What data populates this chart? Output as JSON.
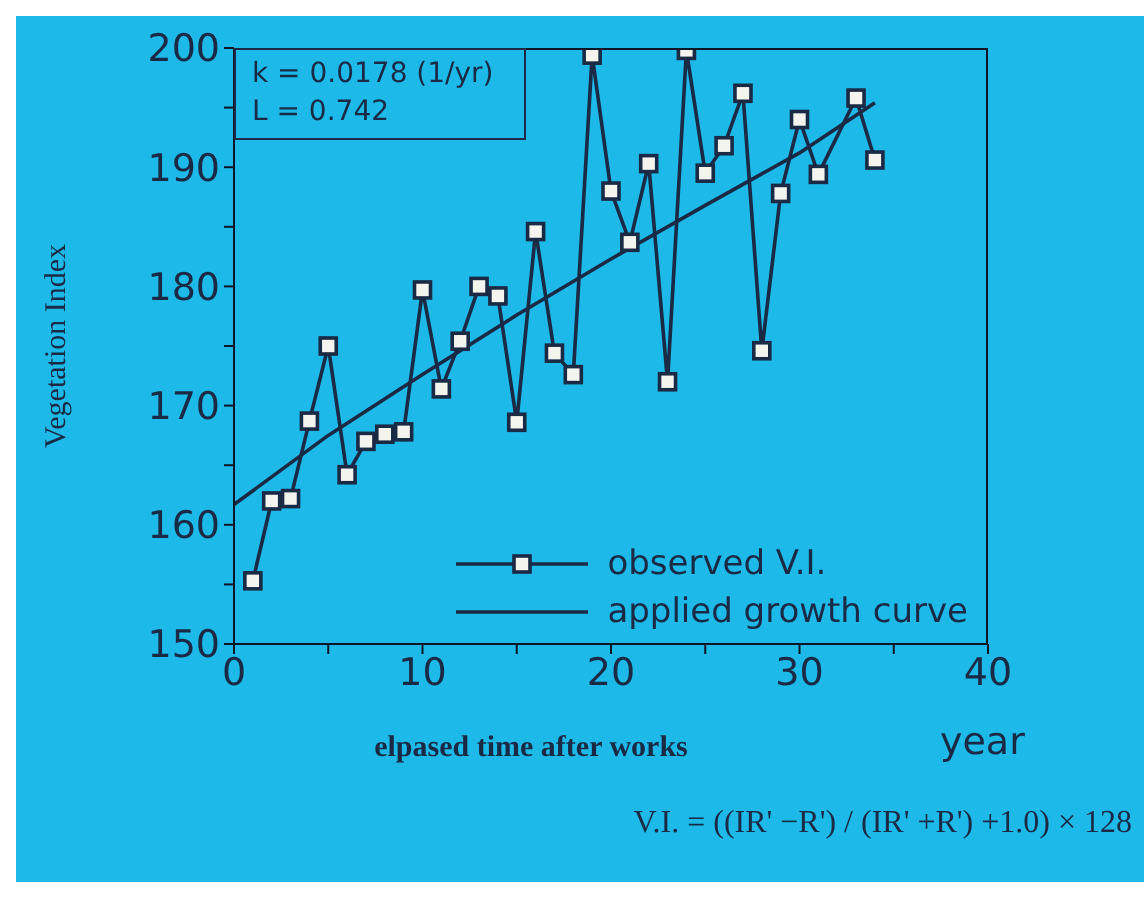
{
  "chart_data": {
    "type": "line",
    "xlabel": "elpased time after works",
    "ylabel": "Vegetation Index",
    "annotations": [
      "k = 0.0178 (1/yr)",
      "L = 0.742",
      "year",
      "V.I. = ((IR' −R') / (IR' +R') +1.0) × 128"
    ],
    "series": [
      {
        "name": "observed V.I.",
        "color": "#1a2a44",
        "marker": "square",
        "x": [
          1,
          2,
          3,
          4,
          5,
          6,
          7,
          8,
          9,
          10,
          11,
          12,
          13,
          14,
          15,
          16,
          17,
          18,
          19,
          20,
          21,
          22,
          23,
          24,
          25,
          26,
          27,
          28,
          29,
          30,
          31,
          33,
          34
        ],
        "values": [
          155.3,
          162,
          162.2,
          168.7,
          175,
          164.2,
          167,
          167.6,
          167.8,
          179.7,
          171.4,
          175.4,
          180,
          179.2,
          168.6,
          184.6,
          174.4,
          172.6,
          199.4,
          188,
          183.7,
          190.3,
          172,
          199.8,
          189.5,
          191.8,
          196.2,
          174.6,
          187.8,
          194,
          189.4,
          195.8,
          190.6
        ]
      },
      {
        "name": "applied growth curve",
        "color": "#1a2a44",
        "marker": "none",
        "x": [
          0,
          5,
          10,
          15,
          20,
          25,
          30,
          34
        ],
        "values": [
          161.7,
          167.5,
          172.6,
          177.6,
          182.3,
          186.8,
          191.2,
          195.4
        ]
      }
    ],
    "xlim": [
      0,
      40
    ],
    "xticks": [
      0,
      {
        "value": 5,
        "label": null
      },
      10,
      {
        "value": 15,
        "label": null
      },
      20,
      {
        "value": 25,
        "label": null
      },
      30,
      {
        "value": 35,
        "label": null
      },
      40
    ],
    "ylim": [
      150,
      200
    ],
    "yticks": [
      150,
      {
        "value": 155,
        "label": null
      },
      160,
      {
        "value": 165,
        "label": null
      },
      170,
      {
        "value": 175,
        "label": null
      },
      180,
      {
        "value": 185,
        "label": null
      },
      190,
      {
        "value": 195,
        "label": null
      },
      200
    ],
    "grid": false,
    "legend": "bottom right"
  }
}
